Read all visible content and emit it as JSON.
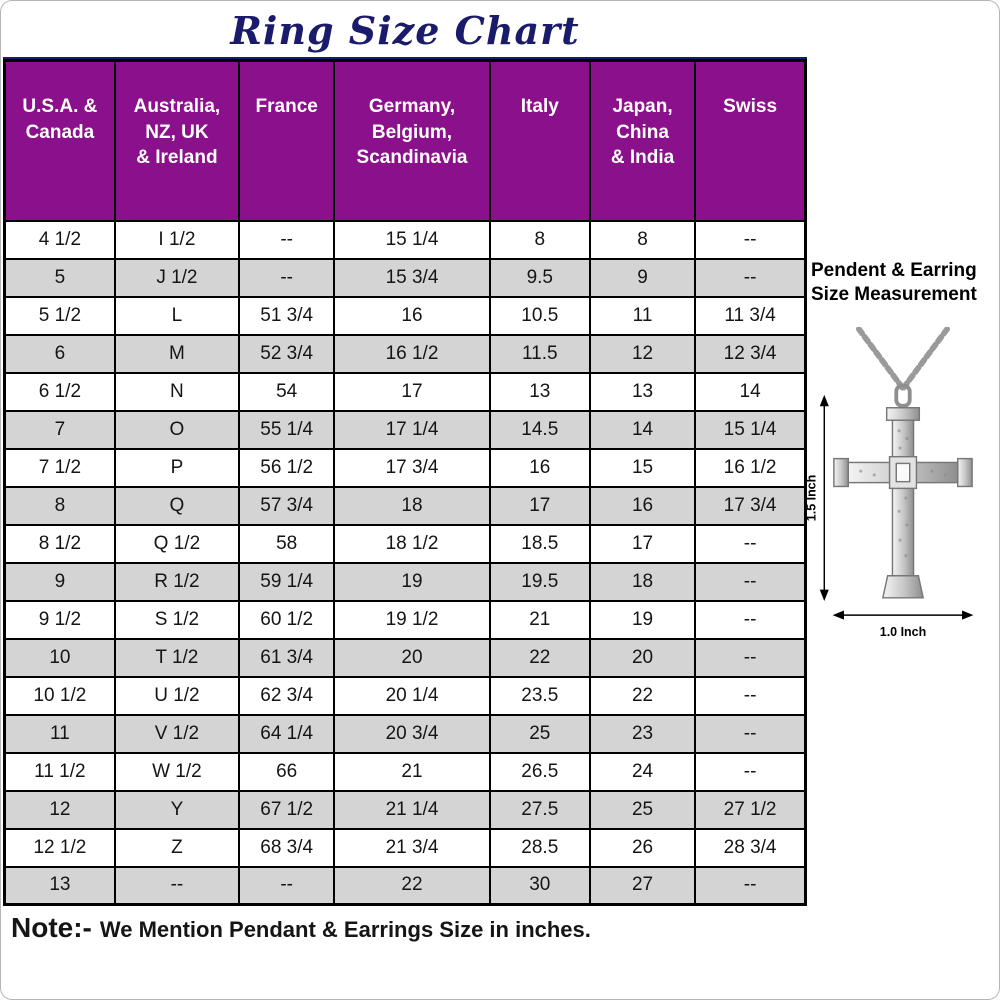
{
  "note": {
    "prefix": "Note:-",
    "text": "We Mention Pendant & Earrings Size in inches."
  },
  "pendant": {
    "heading": "Pendent & Earring\nSize Measurement",
    "height_label": "1.5 Inch",
    "width_label": "1.0 Inch"
  },
  "table": {
    "header_lines": [
      "U.S.A. &\nCanada",
      "Australia,\nNZ, UK\n& Ireland",
      "France",
      "Germany,\nBelgium,\nScandinavia",
      "Italy",
      "Japan,\nChina\n& India",
      "Swiss"
    ]
  },
  "colors": {
    "header_bg": "#8B108B",
    "title": "#1b1b6b",
    "alt_row": "#d4d4d4"
  },
  "chart_data": {
    "type": "table",
    "title": "Ring Size Chart",
    "columns": [
      "U.S.A. & Canada",
      "Australia, NZ, UK & Ireland",
      "France",
      "Germany, Belgium, Scandinavia",
      "Italy",
      "Japan, China & India",
      "Swiss"
    ],
    "rows": [
      [
        "4 1/2",
        "I 1/2",
        "--",
        "15 1/4",
        "8",
        "8",
        "--"
      ],
      [
        "5",
        "J 1/2",
        "--",
        "15 3/4",
        "9.5",
        "9",
        "--"
      ],
      [
        "5 1/2",
        "L",
        "51 3/4",
        "16",
        "10.5",
        "11",
        "11 3/4"
      ],
      [
        "6",
        "M",
        "52 3/4",
        "16 1/2",
        "11.5",
        "12",
        "12 3/4"
      ],
      [
        "6 1/2",
        "N",
        "54",
        "17",
        "13",
        "13",
        "14"
      ],
      [
        "7",
        "O",
        "55 1/4",
        "17 1/4",
        "14.5",
        "14",
        "15 1/4"
      ],
      [
        "7 1/2",
        "P",
        "56 1/2",
        "17 3/4",
        "16",
        "15",
        "16 1/2"
      ],
      [
        "8",
        "Q",
        "57 3/4",
        "18",
        "17",
        "16",
        "17 3/4"
      ],
      [
        "8 1/2",
        "Q 1/2",
        "58",
        "18 1/2",
        "18.5",
        "17",
        "--"
      ],
      [
        "9",
        "R 1/2",
        "59 1/4",
        "19",
        "19.5",
        "18",
        "--"
      ],
      [
        "9 1/2",
        "S 1/2",
        "60 1/2",
        "19 1/2",
        "21",
        "19",
        "--"
      ],
      [
        "10",
        "T 1/2",
        "61 3/4",
        "20",
        "22",
        "20",
        "--"
      ],
      [
        "10 1/2",
        "U 1/2",
        "62 3/4",
        "20 1/4",
        "23.5",
        "22",
        "--"
      ],
      [
        "11",
        "V 1/2",
        "64 1/4",
        "20 3/4",
        "25",
        "23",
        "--"
      ],
      [
        "11 1/2",
        "W 1/2",
        "66",
        "21",
        "26.5",
        "24",
        "--"
      ],
      [
        "12",
        "Y",
        "67 1/2",
        "21 1/4",
        "27.5",
        "25",
        "27 1/2"
      ],
      [
        "12 1/2",
        "Z",
        "68 3/4",
        "21 3/4",
        "28.5",
        "26",
        "28 3/4"
      ],
      [
        "13",
        "--",
        "--",
        "22",
        "30",
        "27",
        "--"
      ]
    ]
  }
}
